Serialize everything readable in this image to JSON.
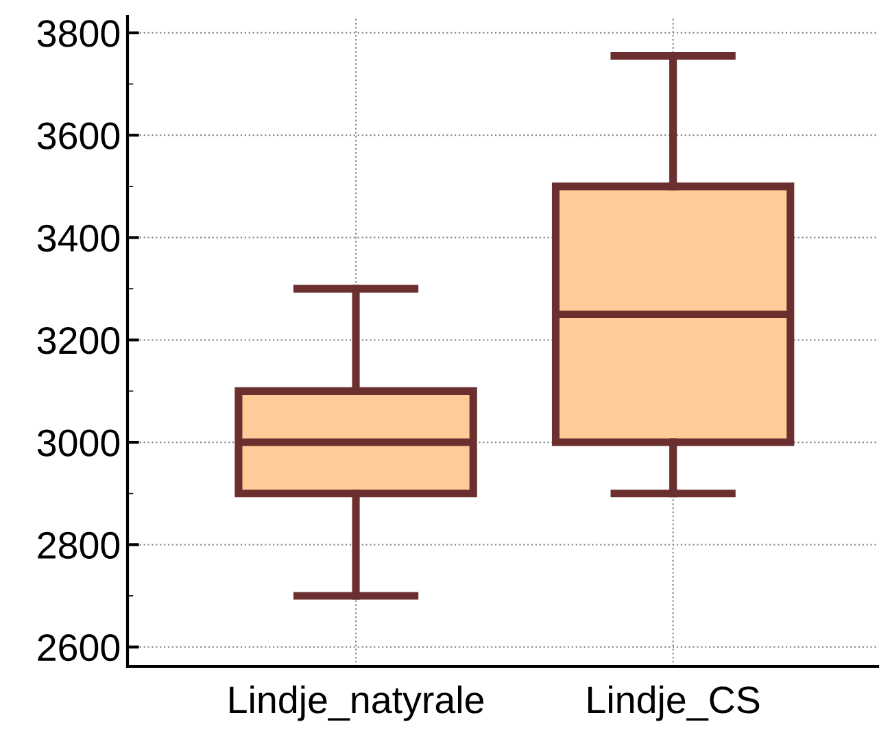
{
  "chart_data": {
    "type": "box",
    "categories": [
      "Lindje_natyrale",
      "Lindje_CS"
    ],
    "boxes": [
      {
        "low": 2700,
        "q1": 2900,
        "median": 3000,
        "q3": 3100,
        "high": 3300
      },
      {
        "low": 2900,
        "q1": 3000,
        "median": 3250,
        "q3": 3500,
        "high": 3755
      }
    ],
    "color": "#ffcc99",
    "ylim": [
      2562,
      3832
    ],
    "yticks": [
      2600,
      2800,
      3000,
      3200,
      3400,
      3600,
      3800
    ],
    "grid": true
  }
}
